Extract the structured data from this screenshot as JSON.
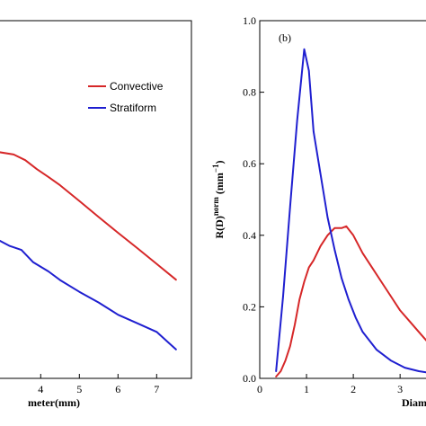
{
  "chart_data": [
    {
      "panel": "a",
      "type": "line",
      "xlabel": "meter(mm)",
      "ylabel": "",
      "xlim": [
        2.9,
        7.9
      ],
      "ylim": [
        0,
        1.0
      ],
      "xticks": [
        4,
        5,
        6,
        7
      ],
      "legend": {
        "placement": "top-right"
      },
      "series": [
        {
          "name": "Convective",
          "color": "#d62728",
          "x": [
            2.9,
            3.3,
            3.6,
            3.9,
            4.2,
            4.5,
            5.0,
            5.5,
            6.0,
            6.5,
            7.0,
            7.5
          ],
          "y": [
            0.633,
            0.626,
            0.61,
            0.585,
            0.563,
            0.54,
            0.496,
            0.451,
            0.407,
            0.364,
            0.32,
            0.276
          ]
        },
        {
          "name": "Stratiform",
          "color": "#1f1fd0",
          "x": [
            2.9,
            3.2,
            3.5,
            3.8,
            4.2,
            4.5,
            5.0,
            5.5,
            6.0,
            6.5,
            7.0,
            7.5
          ],
          "y": [
            0.387,
            0.37,
            0.359,
            0.325,
            0.299,
            0.275,
            0.242,
            0.212,
            0.178,
            0.154,
            0.13,
            0.081
          ]
        }
      ]
    },
    {
      "panel": "b",
      "panel_label": "(b)",
      "type": "line",
      "xlabel": "Diam",
      "ylabel_main": "R(D)",
      "ylabel_sup1": "norm",
      "ylabel_unit": " (mm",
      "ylabel_sup2": "−1",
      "ylabel_close": ")",
      "xlim": [
        0,
        3.65
      ],
      "ylim": [
        0,
        1.0
      ],
      "xticks": [
        0,
        1,
        2,
        3
      ],
      "xtick_labels": [
        "0",
        "1",
        "2",
        "3"
      ],
      "yticks": [
        0,
        0.2,
        0.4,
        0.6,
        0.8,
        1.0
      ],
      "ytick_labels": [
        "0.0",
        "0.2",
        "0.4",
        "0.6",
        "0.8",
        "1.0"
      ],
      "series": [
        {
          "name": "Convective",
          "color": "#d62728",
          "x": [
            0.35,
            0.45,
            0.55,
            0.65,
            0.75,
            0.85,
            0.95,
            1.05,
            1.15,
            1.3,
            1.45,
            1.6,
            1.75,
            1.85,
            2.0,
            2.2,
            2.4,
            2.6,
            2.8,
            3.0,
            3.2,
            3.4,
            3.6
          ],
          "y": [
            0.005,
            0.02,
            0.05,
            0.09,
            0.15,
            0.22,
            0.27,
            0.31,
            0.33,
            0.37,
            0.4,
            0.42,
            0.42,
            0.425,
            0.4,
            0.35,
            0.31,
            0.27,
            0.23,
            0.19,
            0.16,
            0.13,
            0.1
          ]
        },
        {
          "name": "Stratiform",
          "color": "#1f1fd0",
          "x": [
            0.35,
            0.5,
            0.65,
            0.8,
            0.95,
            1.05,
            1.15,
            1.3,
            1.45,
            1.6,
            1.75,
            1.9,
            2.05,
            2.2,
            2.5,
            2.8,
            3.1,
            3.4,
            3.65
          ],
          "y": [
            0.02,
            0.23,
            0.48,
            0.72,
            0.92,
            0.86,
            0.69,
            0.57,
            0.45,
            0.36,
            0.28,
            0.22,
            0.17,
            0.13,
            0.08,
            0.05,
            0.03,
            0.02,
            0.015
          ]
        }
      ]
    }
  ]
}
